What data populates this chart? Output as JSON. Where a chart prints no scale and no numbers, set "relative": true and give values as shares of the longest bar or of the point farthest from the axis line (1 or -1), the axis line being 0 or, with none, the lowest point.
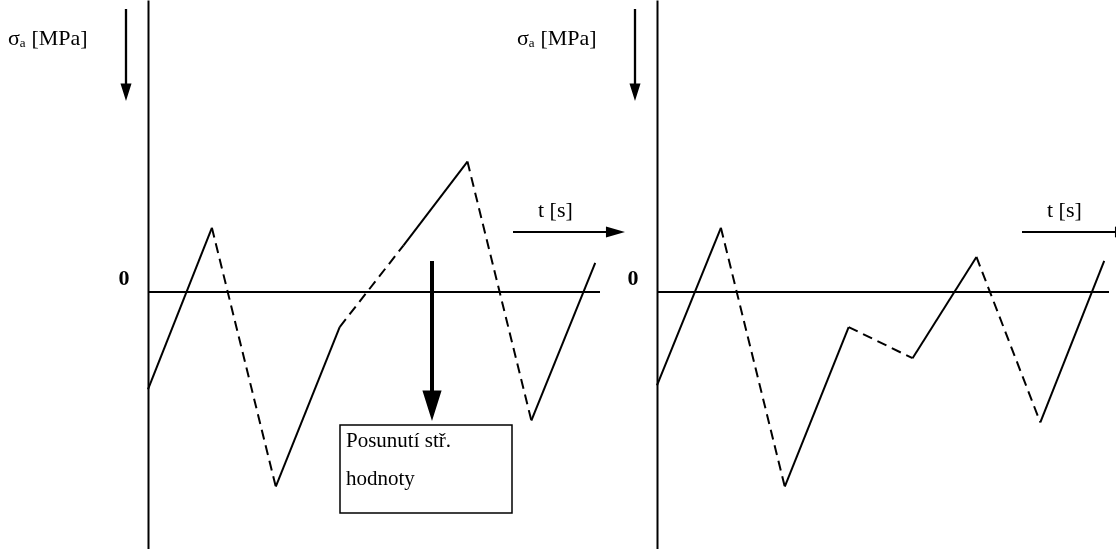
{
  "chart_data": [
    {
      "type": "line",
      "relative": true,
      "xlabel": "t [s]",
      "ylabel": "σₐ [MPa]",
      "categories": [
        null,
        null,
        null,
        null,
        null,
        null,
        null,
        null
      ],
      "ref_lines": [
        {
          "axis": "y",
          "value": 0,
          "label": "0"
        }
      ],
      "annotations": [
        "Posunutí stř.\nhodnoty"
      ],
      "series": [
        {
          "color": "#000000",
          "line_style": "solid",
          "values": [
            -0.5,
            0.33,
            null,
            null,
            null,
            null,
            null,
            null
          ]
        },
        {
          "color": "#000000",
          "line_style": "dashed",
          "values": [
            null,
            0.33,
            -1,
            null,
            null,
            null,
            null,
            null
          ]
        },
        {
          "color": "#000000",
          "line_style": "solid",
          "values": [
            null,
            null,
            -1,
            -0.18,
            null,
            null,
            null,
            null
          ]
        },
        {
          "color": "#000000",
          "line_style": "dashed",
          "values": [
            null,
            null,
            null,
            -0.18,
            0.24,
            null,
            null,
            null
          ]
        },
        {
          "color": "#000000",
          "line_style": "solid",
          "values": [
            null,
            null,
            null,
            null,
            0.24,
            0.67,
            null,
            null
          ]
        },
        {
          "color": "#000000",
          "line_style": "dashed",
          "values": [
            null,
            null,
            null,
            null,
            null,
            0.67,
            -0.66,
            null
          ]
        },
        {
          "color": "#000000",
          "line_style": "solid",
          "values": [
            null,
            null,
            null,
            null,
            null,
            null,
            -0.66,
            0.15
          ]
        }
      ]
    },
    {
      "type": "line",
      "relative": true,
      "xlabel": "t [s]",
      "ylabel": "σₐ [MPa]",
      "categories": [
        null,
        null,
        null,
        null,
        null,
        null,
        null,
        null
      ],
      "ref_lines": [
        {
          "axis": "y",
          "value": 0,
          "label": "0"
        }
      ],
      "series": [
        {
          "color": "#000000",
          "line_style": "solid",
          "values": [
            -0.48,
            0.33,
            null,
            null,
            null,
            null,
            null,
            null
          ]
        },
        {
          "color": "#000000",
          "line_style": "dashed",
          "values": [
            null,
            0.33,
            -1,
            null,
            null,
            null,
            null,
            null
          ]
        },
        {
          "color": "#000000",
          "line_style": "solid",
          "values": [
            null,
            null,
            -1,
            -0.18,
            null,
            null,
            null,
            null
          ]
        },
        {
          "color": "#000000",
          "line_style": "dashed",
          "values": [
            null,
            null,
            null,
            -0.18,
            -0.34,
            null,
            null,
            null
          ]
        },
        {
          "color": "#000000",
          "line_style": "solid",
          "values": [
            null,
            null,
            null,
            null,
            -0.34,
            0.18,
            null,
            null
          ]
        },
        {
          "color": "#000000",
          "line_style": "dashed",
          "values": [
            null,
            null,
            null,
            null,
            null,
            0.18,
            -0.67,
            null
          ]
        },
        {
          "color": "#000000",
          "line_style": "solid",
          "values": [
            null,
            null,
            null,
            null,
            null,
            null,
            -0.67,
            0.16
          ]
        }
      ]
    }
  ]
}
